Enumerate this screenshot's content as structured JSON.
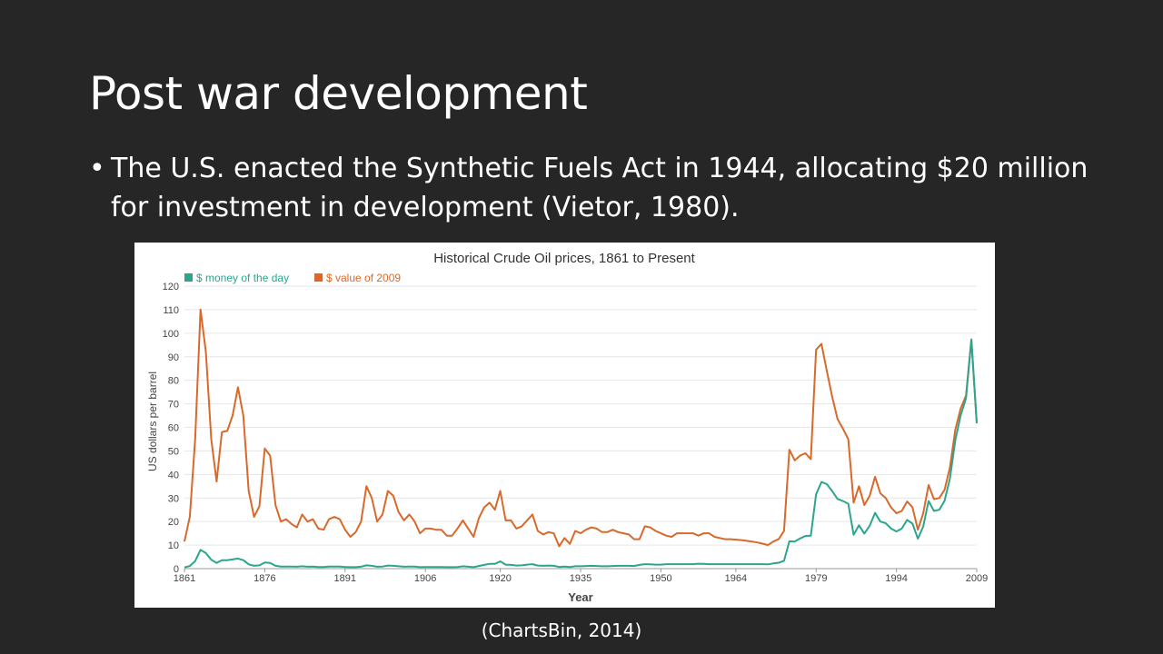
{
  "slide": {
    "title": "Post war development",
    "bullets": [
      "The U.S. enacted the Synthetic Fuels Act in 1944, allocating $20 million for investment in development (Vietor, 1980)."
    ],
    "bullet_symbol": "•",
    "caption": "(ChartsBin, 2014)"
  },
  "chart_data": {
    "type": "line",
    "title": "Historical Crude Oil prices, 1861 to Present",
    "xlabel": "Year",
    "ylabel": "US dollars per barrel",
    "xlim": [
      1861,
      2009
    ],
    "ylim": [
      0,
      120
    ],
    "x_ticks": [
      "1861",
      "1876",
      "1891",
      "1906",
      "1920",
      "1935",
      "1950",
      "1964",
      "1979",
      "1994",
      "2009"
    ],
    "y_ticks": [
      "0",
      "10",
      "20",
      "30",
      "40",
      "50",
      "60",
      "70",
      "80",
      "90",
      "100",
      "110",
      "120"
    ],
    "grid": true,
    "legend_position": "top-left",
    "series": [
      {
        "name": "$ money of the day",
        "color": "#2ca58d",
        "points": [
          [
            1861,
            0.5
          ],
          [
            1862,
            1.1
          ],
          [
            1863,
            3.2
          ],
          [
            1864,
            8
          ],
          [
            1865,
            6.6
          ],
          [
            1866,
            3.8
          ],
          [
            1867,
            2.4
          ],
          [
            1868,
            3.6
          ],
          [
            1869,
            3.6
          ],
          [
            1870,
            3.9
          ],
          [
            1871,
            4.3
          ],
          [
            1872,
            3.6
          ],
          [
            1873,
            1.8
          ],
          [
            1874,
            1.2
          ],
          [
            1875,
            1.4
          ],
          [
            1876,
            2.6
          ],
          [
            1877,
            2.4
          ],
          [
            1878,
            1.2
          ],
          [
            1879,
            0.9
          ],
          [
            1880,
            0.9
          ],
          [
            1881,
            0.9
          ],
          [
            1882,
            0.8
          ],
          [
            1883,
            1
          ],
          [
            1884,
            0.8
          ],
          [
            1885,
            0.9
          ],
          [
            1886,
            0.7
          ],
          [
            1887,
            0.7
          ],
          [
            1888,
            0.9
          ],
          [
            1889,
            0.9
          ],
          [
            1890,
            0.9
          ],
          [
            1891,
            0.7
          ],
          [
            1892,
            0.6
          ],
          [
            1893,
            0.6
          ],
          [
            1894,
            0.8
          ],
          [
            1895,
            1.4
          ],
          [
            1896,
            1.2
          ],
          [
            1897,
            0.8
          ],
          [
            1898,
            0.9
          ],
          [
            1899,
            1.3
          ],
          [
            1900,
            1.2
          ],
          [
            1901,
            1
          ],
          [
            1902,
            0.8
          ],
          [
            1903,
            0.9
          ],
          [
            1904,
            0.9
          ],
          [
            1905,
            0.6
          ],
          [
            1906,
            0.7
          ],
          [
            1907,
            0.7
          ],
          [
            1908,
            0.7
          ],
          [
            1909,
            0.7
          ],
          [
            1910,
            0.6
          ],
          [
            1911,
            0.6
          ],
          [
            1912,
            0.7
          ],
          [
            1913,
            1
          ],
          [
            1914,
            0.8
          ],
          [
            1915,
            0.6
          ],
          [
            1916,
            1.1
          ],
          [
            1917,
            1.6
          ],
          [
            1918,
            2
          ],
          [
            1919,
            2
          ],
          [
            1920,
            3.1
          ],
          [
            1921,
            1.7
          ],
          [
            1922,
            1.6
          ],
          [
            1923,
            1.3
          ],
          [
            1924,
            1.4
          ],
          [
            1925,
            1.7
          ],
          [
            1926,
            1.9
          ],
          [
            1927,
            1.3
          ],
          [
            1928,
            1.2
          ],
          [
            1929,
            1.3
          ],
          [
            1930,
            1.2
          ],
          [
            1931,
            0.7
          ],
          [
            1932,
            0.9
          ],
          [
            1933,
            0.7
          ],
          [
            1934,
            1
          ],
          [
            1935,
            1
          ],
          [
            1936,
            1.1
          ],
          [
            1937,
            1.2
          ],
          [
            1938,
            1.1
          ],
          [
            1939,
            1
          ],
          [
            1940,
            1
          ],
          [
            1941,
            1.1
          ],
          [
            1942,
            1.2
          ],
          [
            1943,
            1.2
          ],
          [
            1944,
            1.2
          ],
          [
            1945,
            1.1
          ],
          [
            1946,
            1.6
          ],
          [
            1947,
            1.9
          ],
          [
            1948,
            1.8
          ],
          [
            1949,
            1.7
          ],
          [
            1950,
            1.7
          ],
          [
            1951,
            1.9
          ],
          [
            1952,
            1.9
          ],
          [
            1953,
            1.9
          ],
          [
            1954,
            1.9
          ],
          [
            1955,
            1.9
          ],
          [
            1956,
            1.9
          ],
          [
            1957,
            2.1
          ],
          [
            1958,
            2
          ],
          [
            1959,
            1.9
          ],
          [
            1960,
            1.9
          ],
          [
            1961,
            1.9
          ],
          [
            1962,
            1.9
          ],
          [
            1963,
            1.9
          ],
          [
            1964,
            1.9
          ],
          [
            1965,
            1.9
          ],
          [
            1966,
            1.9
          ],
          [
            1967,
            1.9
          ],
          [
            1968,
            1.9
          ],
          [
            1969,
            1.9
          ],
          [
            1970,
            1.8
          ],
          [
            1971,
            2.2
          ],
          [
            1972,
            2.5
          ],
          [
            1973,
            3.3
          ],
          [
            1974,
            11.6
          ],
          [
            1975,
            11.5
          ],
          [
            1976,
            12.8
          ],
          [
            1977,
            13.9
          ],
          [
            1978,
            14
          ],
          [
            1979,
            31.6
          ],
          [
            1980,
            36.8
          ],
          [
            1981,
            35.9
          ],
          [
            1982,
            32.9
          ],
          [
            1983,
            29.6
          ],
          [
            1984,
            28.7
          ],
          [
            1985,
            27.6
          ],
          [
            1986,
            14.4
          ],
          [
            1987,
            18.4
          ],
          [
            1988,
            14.9
          ],
          [
            1989,
            18.2
          ],
          [
            1990,
            23.7
          ],
          [
            1991,
            20
          ],
          [
            1992,
            19.3
          ],
          [
            1993,
            17
          ],
          [
            1994,
            15.8
          ],
          [
            1995,
            17
          ],
          [
            1996,
            20.7
          ],
          [
            1997,
            19.1
          ],
          [
            1998,
            12.7
          ],
          [
            1999,
            17.9
          ],
          [
            2000,
            28.7
          ],
          [
            2001,
            24.5
          ],
          [
            2002,
            25
          ],
          [
            2003,
            28.8
          ],
          [
            2004,
            38.3
          ],
          [
            2005,
            54.5
          ],
          [
            2006,
            65.1
          ],
          [
            2007,
            72.4
          ],
          [
            2008,
            97.3
          ],
          [
            2009,
            61.7
          ]
        ]
      },
      {
        "name": "$ value of 2009",
        "color": "#d8692a",
        "points": [
          [
            1861,
            11.5
          ],
          [
            1862,
            22
          ],
          [
            1863,
            55
          ],
          [
            1864,
            110
          ],
          [
            1865,
            92
          ],
          [
            1866,
            55
          ],
          [
            1867,
            37
          ],
          [
            1868,
            58
          ],
          [
            1869,
            58.5
          ],
          [
            1870,
            65
          ],
          [
            1871,
            77
          ],
          [
            1872,
            65
          ],
          [
            1873,
            33
          ],
          [
            1874,
            22
          ],
          [
            1875,
            26.5
          ],
          [
            1876,
            51
          ],
          [
            1877,
            48
          ],
          [
            1878,
            27
          ],
          [
            1879,
            20
          ],
          [
            1880,
            21
          ],
          [
            1881,
            19
          ],
          [
            1882,
            17.5
          ],
          [
            1883,
            23
          ],
          [
            1884,
            20
          ],
          [
            1885,
            21
          ],
          [
            1886,
            17
          ],
          [
            1887,
            16.5
          ],
          [
            1888,
            21
          ],
          [
            1889,
            22
          ],
          [
            1890,
            21
          ],
          [
            1891,
            16.5
          ],
          [
            1892,
            13.5
          ],
          [
            1893,
            15.5
          ],
          [
            1894,
            20
          ],
          [
            1895,
            35
          ],
          [
            1896,
            30
          ],
          [
            1897,
            20
          ],
          [
            1898,
            23
          ],
          [
            1899,
            33
          ],
          [
            1900,
            31
          ],
          [
            1901,
            24
          ],
          [
            1902,
            20.5
          ],
          [
            1903,
            23
          ],
          [
            1904,
            20
          ],
          [
            1905,
            15
          ],
          [
            1906,
            17
          ],
          [
            1907,
            17
          ],
          [
            1908,
            16.5
          ],
          [
            1909,
            16.5
          ],
          [
            1910,
            14
          ],
          [
            1911,
            14
          ],
          [
            1912,
            17
          ],
          [
            1913,
            20.5
          ],
          [
            1914,
            17
          ],
          [
            1915,
            13.5
          ],
          [
            1916,
            21.5
          ],
          [
            1917,
            26
          ],
          [
            1918,
            28
          ],
          [
            1919,
            25
          ],
          [
            1920,
            33
          ],
          [
            1921,
            20.5
          ],
          [
            1922,
            20.5
          ],
          [
            1923,
            17
          ],
          [
            1924,
            18
          ],
          [
            1925,
            20.5
          ],
          [
            1926,
            23
          ],
          [
            1927,
            16
          ],
          [
            1928,
            14.5
          ],
          [
            1929,
            15.5
          ],
          [
            1930,
            15
          ],
          [
            1931,
            9.5
          ],
          [
            1932,
            13
          ],
          [
            1933,
            10.5
          ],
          [
            1934,
            16
          ],
          [
            1935,
            15
          ],
          [
            1936,
            16.5
          ],
          [
            1937,
            17.5
          ],
          [
            1938,
            17
          ],
          [
            1939,
            15.5
          ],
          [
            1940,
            15.5
          ],
          [
            1941,
            16.5
          ],
          [
            1942,
            15.5
          ],
          [
            1943,
            15
          ],
          [
            1944,
            14.5
          ],
          [
            1945,
            12.5
          ],
          [
            1946,
            12.5
          ],
          [
            1947,
            18
          ],
          [
            1948,
            17.5
          ],
          [
            1949,
            16
          ],
          [
            1950,
            15
          ],
          [
            1951,
            14
          ],
          [
            1952,
            13.5
          ],
          [
            1953,
            15
          ],
          [
            1954,
            15
          ],
          [
            1955,
            15
          ],
          [
            1956,
            15
          ],
          [
            1957,
            14
          ],
          [
            1958,
            15
          ],
          [
            1959,
            15
          ],
          [
            1960,
            13.5
          ],
          [
            1961,
            13
          ],
          [
            1962,
            12.5
          ],
          [
            1963,
            12.5
          ],
          [
            1964,
            12.3
          ],
          [
            1965,
            12.1
          ],
          [
            1966,
            11.8
          ],
          [
            1967,
            11.5
          ],
          [
            1968,
            11.1
          ],
          [
            1969,
            10.6
          ],
          [
            1970,
            10
          ],
          [
            1971,
            11.5
          ],
          [
            1972,
            12.5
          ],
          [
            1973,
            16
          ],
          [
            1974,
            50.5
          ],
          [
            1975,
            46
          ],
          [
            1976,
            48
          ],
          [
            1977,
            49
          ],
          [
            1978,
            46.5
          ],
          [
            1979,
            93
          ],
          [
            1980,
            95.5
          ],
          [
            1981,
            84
          ],
          [
            1982,
            73
          ],
          [
            1983,
            63.5
          ],
          [
            1984,
            59.5
          ],
          [
            1985,
            55
          ],
          [
            1986,
            28
          ],
          [
            1987,
            35
          ],
          [
            1988,
            27
          ],
          [
            1989,
            31
          ],
          [
            1990,
            39
          ],
          [
            1991,
            32
          ],
          [
            1992,
            30
          ],
          [
            1993,
            26
          ],
          [
            1994,
            23.5
          ],
          [
            1995,
            24.5
          ],
          [
            1996,
            28.5
          ],
          [
            1997,
            26
          ],
          [
            1998,
            16.5
          ],
          [
            1999,
            23.5
          ],
          [
            2000,
            35.5
          ],
          [
            2001,
            29.5
          ],
          [
            2002,
            30
          ],
          [
            2003,
            33.5
          ],
          [
            2004,
            43
          ],
          [
            2005,
            59
          ],
          [
            2006,
            68
          ],
          [
            2007,
            73.5
          ],
          [
            2008,
            97.3
          ],
          [
            2009,
            61.7
          ]
        ]
      }
    ]
  }
}
